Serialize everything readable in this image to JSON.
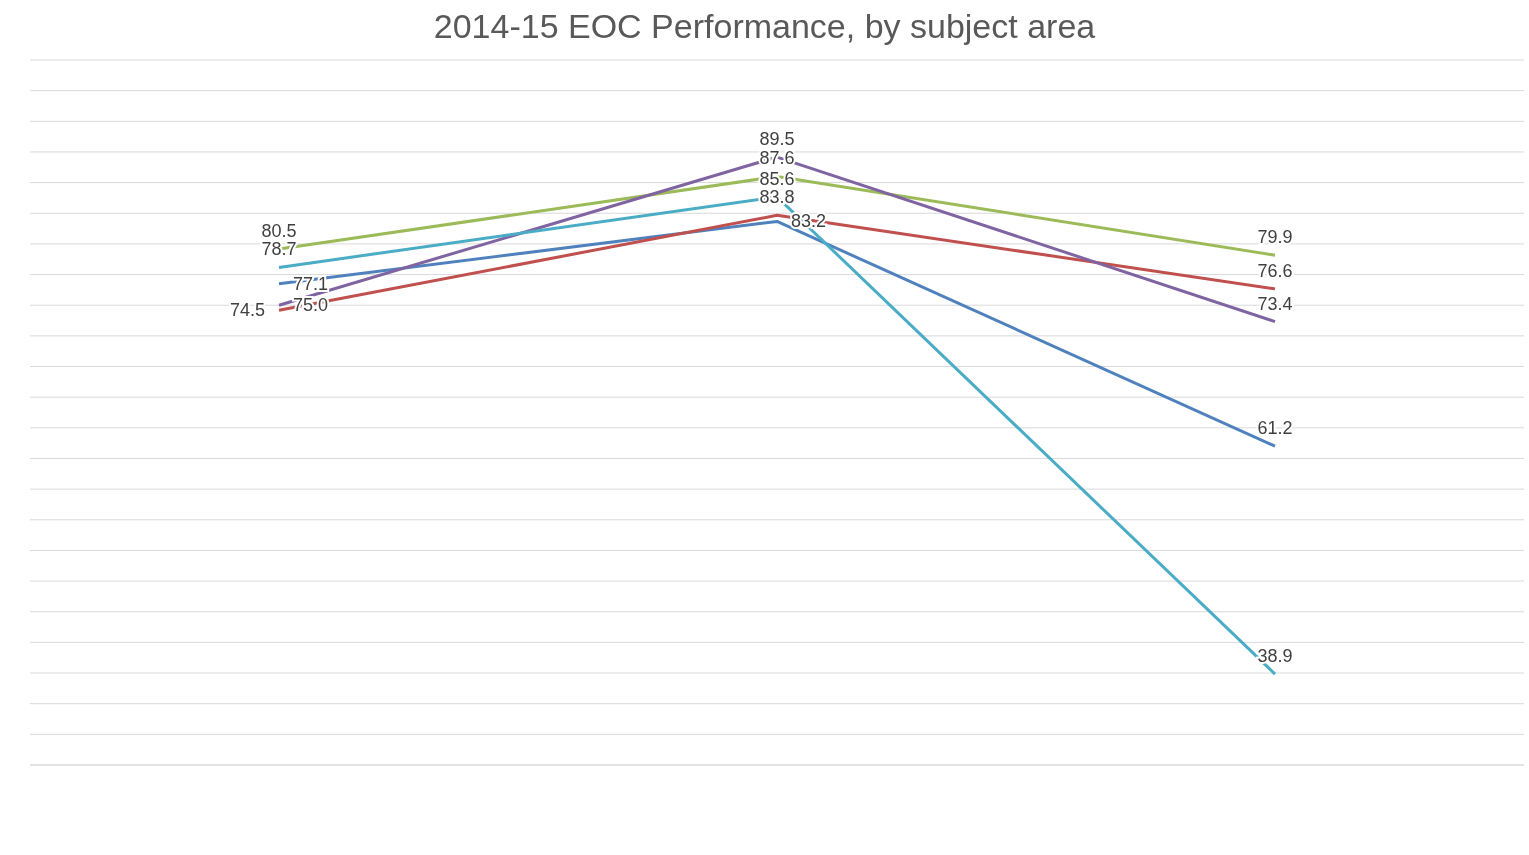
{
  "chart_data": {
    "type": "line",
    "title": "2014-15 EOC Performance, by subject area",
    "categories": [
      null,
      null,
      null
    ],
    "series": [
      {
        "color": "#4f81bd",
        "values": [
          77.1,
          83.2,
          61.2
        ],
        "value_labels": [
          "77.1",
          "83.2",
          "61.2"
        ]
      },
      {
        "color": "#c0504d",
        "values": [
          74.5,
          83.8,
          76.6
        ],
        "value_labels": [
          "74.5",
          "83.8",
          "76.6"
        ]
      },
      {
        "color": "#9bbb59",
        "values": [
          80.5,
          87.6,
          79.9
        ],
        "value_labels": [
          "80.5",
          "87.6",
          "79.9"
        ]
      },
      {
        "color": "#8064a2",
        "values": [
          75.0,
          89.5,
          73.4
        ],
        "value_labels": [
          "75.0",
          "89.5",
          "73.4"
        ]
      },
      {
        "color": "#4bacc6",
        "values": [
          78.7,
          85.6,
          38.9
        ],
        "value_labels": [
          "78.7",
          "85.6",
          "38.9"
        ]
      }
    ],
    "ylim": [
      30,
      99
    ],
    "yticks": [
      30,
      33,
      36,
      39,
      42,
      45,
      48,
      51,
      54,
      57,
      60,
      63,
      66,
      69,
      72,
      75,
      78,
      81,
      84,
      87,
      90,
      93,
      96,
      99
    ],
    "grid": "y",
    "tick_labels": false,
    "marker": "none",
    "line_style": "solid"
  }
}
